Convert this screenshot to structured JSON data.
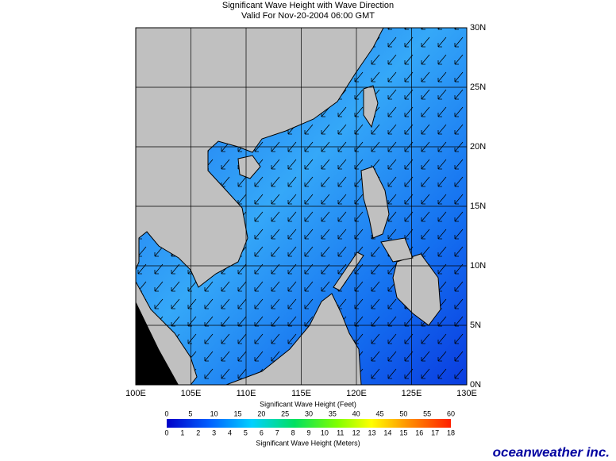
{
  "header": {
    "title": "Significant Wave Height with Wave Direction",
    "subtitle": "Valid For Nov-20-2004 06:00 GMT"
  },
  "map": {
    "lonlim": [
      100,
      130
    ],
    "latlim": [
      0,
      30
    ],
    "lon_ticks": [
      {
        "value": 100,
        "label": "100E"
      },
      {
        "value": 105,
        "label": "105E"
      },
      {
        "value": 110,
        "label": "110E"
      },
      {
        "value": 115,
        "label": "115E"
      },
      {
        "value": 120,
        "label": "120E"
      },
      {
        "value": 125,
        "label": "125E"
      },
      {
        "value": 130,
        "label": "130E"
      }
    ],
    "lat_ticks": [
      {
        "value": 0,
        "label": "0N"
      },
      {
        "value": 5,
        "label": "5N"
      },
      {
        "value": 10,
        "label": "10N"
      },
      {
        "value": 15,
        "label": "15N"
      },
      {
        "value": 20,
        "label": "20N"
      },
      {
        "value": 25,
        "label": "25N"
      },
      {
        "value": 30,
        "label": "30N"
      }
    ]
  },
  "colorbar": {
    "feet_title": "Significant Wave Height (Feet)",
    "meters_title": "Significant Wave Height (Meters)",
    "feet_range": [
      0,
      60
    ],
    "feet_ticks": [
      0,
      5,
      10,
      15,
      20,
      25,
      30,
      35,
      40,
      45,
      50,
      55,
      60
    ],
    "meters_range": [
      0,
      18
    ],
    "meters_ticks": [
      0,
      1,
      2,
      3,
      4,
      5,
      6,
      7,
      8,
      9,
      10,
      11,
      12,
      13,
      14,
      15,
      16,
      17,
      18
    ]
  },
  "logo": "oceanweather inc."
}
